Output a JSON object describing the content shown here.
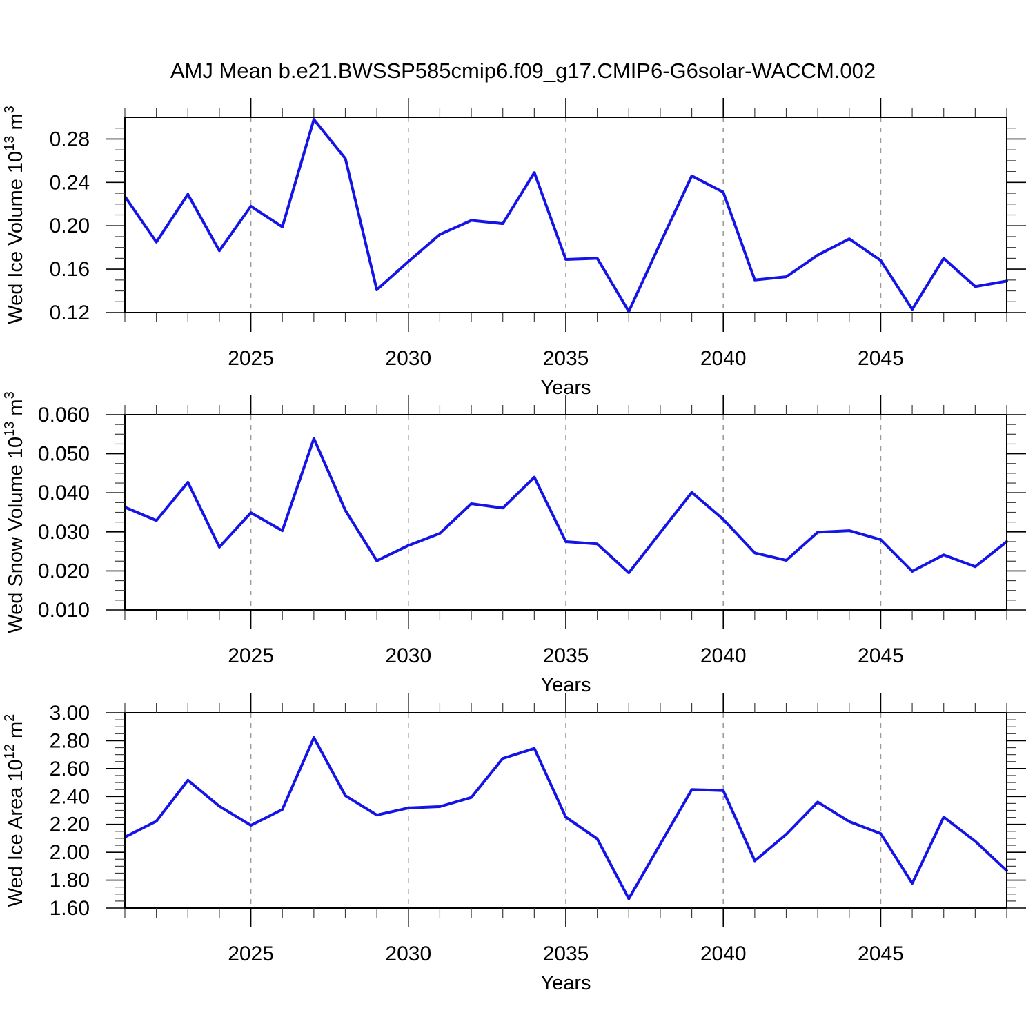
{
  "title": "AMJ Mean b.e21.BWSSP585cmip6.f09_g17.CMIP6-G6solar-WACCM.002",
  "colors": {
    "line": "#1414e6",
    "grid": "#9b9b9b",
    "axis": "#000000"
  },
  "years": [
    2021,
    2022,
    2023,
    2024,
    2025,
    2026,
    2027,
    2028,
    2029,
    2030,
    2031,
    2032,
    2033,
    2034,
    2035,
    2036,
    2037,
    2038,
    2039,
    2040,
    2041,
    2042,
    2043,
    2044,
    2045,
    2046,
    2047,
    2048,
    2049
  ],
  "x_axis": {
    "label": "Years",
    "range": [
      2021,
      2049
    ],
    "major_ticks": [
      2025,
      2030,
      2035,
      2040,
      2045
    ],
    "major_tick_labels": [
      "2025",
      "2030",
      "2035",
      "2040",
      "2045"
    ],
    "minor_step": 1,
    "gridlines": "dashed"
  },
  "chart_data": [
    {
      "id": "wed-ice-volume",
      "type": "line",
      "ylabel": "Wed Ice Volume 10^13 m^3",
      "ylabel_segments": [
        [
          "Wed Ice Volume 10",
          false
        ],
        [
          "13",
          true
        ],
        [
          " m",
          false
        ],
        [
          "3",
          true
        ]
      ],
      "xlabel": "Years",
      "ylim": [
        0.12,
        0.3
      ],
      "yticks": {
        "values": [
          0.28,
          0.24,
          0.2,
          0.16,
          0.12
        ],
        "labels": [
          "0.28",
          "0.24",
          "0.20",
          "0.16",
          "0.12"
        ],
        "minor_step": 0.01
      },
      "values": [
        0.227,
        0.185,
        0.229,
        0.177,
        0.218,
        0.199,
        0.298,
        0.262,
        0.141,
        0.167,
        0.192,
        0.205,
        0.202,
        0.249,
        0.169,
        0.17,
        0.121,
        0.184,
        0.246,
        0.231,
        0.15,
        0.153,
        0.173,
        0.188,
        0.168,
        0.123,
        0.17,
        0.144,
        0.149
      ]
    },
    {
      "id": "wed-snow-volume",
      "type": "line",
      "ylabel": "Wed Snow Volume 10^13 m^3",
      "ylabel_segments": [
        [
          "Wed Snow Volume 10",
          false
        ],
        [
          "13",
          true
        ],
        [
          " m",
          false
        ],
        [
          "3",
          true
        ]
      ],
      "xlabel": "Years",
      "ylim": [
        0.01,
        0.06
      ],
      "yticks": {
        "values": [
          0.06,
          0.05,
          0.04,
          0.03,
          0.02,
          0.01
        ],
        "labels": [
          "0.060",
          "0.050",
          "0.040",
          "0.030",
          "0.020",
          "0.010"
        ],
        "minor_step": 0.0025
      },
      "values": [
        0.0363,
        0.0329,
        0.0427,
        0.0261,
        0.0349,
        0.0303,
        0.0539,
        0.0355,
        0.0226,
        0.0265,
        0.0296,
        0.0372,
        0.0361,
        0.044,
        0.0275,
        0.0269,
        0.0195,
        0.0298,
        0.0401,
        0.0332,
        0.0246,
        0.0227,
        0.0299,
        0.0303,
        0.028,
        0.0199,
        0.0241,
        0.0211,
        0.0275
      ]
    },
    {
      "id": "wed-ice-area",
      "type": "line",
      "ylabel": "Wed Ice Area 10^12 m^2",
      "ylabel_segments": [
        [
          "Wed Ice Area 10",
          false
        ],
        [
          "12",
          true
        ],
        [
          " m",
          false
        ],
        [
          "2",
          true
        ]
      ],
      "xlabel": "Years",
      "ylim": [
        1.6,
        3.0
      ],
      "yticks": {
        "values": [
          3.0,
          2.8,
          2.6,
          2.4,
          2.2,
          2.0,
          1.8,
          1.6
        ],
        "labels": [
          "3.00",
          "2.80",
          "2.60",
          "2.40",
          "2.20",
          "2.00",
          "1.80",
          "1.60"
        ],
        "minor_step": 0.05
      },
      "values": [
        2.109,
        2.223,
        2.516,
        2.33,
        2.193,
        2.307,
        2.822,
        2.406,
        2.267,
        2.318,
        2.327,
        2.393,
        2.673,
        2.744,
        2.252,
        2.096,
        1.667,
        2.058,
        2.45,
        2.442,
        1.939,
        2.129,
        2.36,
        2.22,
        2.134,
        1.777,
        2.252,
        2.079,
        1.868
      ]
    }
  ]
}
